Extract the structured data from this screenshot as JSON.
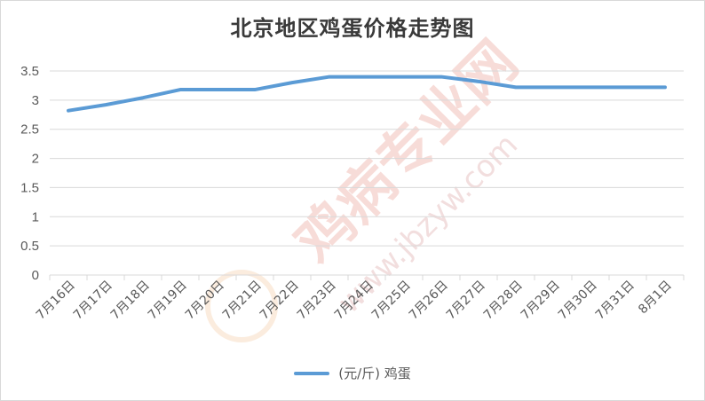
{
  "watermark": {
    "text_cn": "鸡病专业网",
    "text_url": "www.jbzyw.com",
    "text_sub": "行业 个 个",
    "color": "#e8a9a0"
  },
  "chart_data": {
    "type": "line",
    "title": "北京地区鸡蛋价格走势图",
    "categories": [
      "7月16日",
      "7月17日",
      "7月18日",
      "7月19日",
      "7月20日",
      "7月21日",
      "7月22日",
      "7月23日",
      "7月24日",
      "7月25日",
      "7月26日",
      "7月27日",
      "7月28日",
      "7月29日",
      "7月30日",
      "7月31日",
      "8月1日"
    ],
    "series": [
      {
        "name": "(元/斤) 鸡蛋",
        "color": "#5b9bd5",
        "values": [
          2.82,
          2.92,
          3.04,
          3.18,
          3.18,
          3.18,
          3.3,
          3.4,
          3.4,
          3.4,
          3.4,
          3.32,
          3.22,
          3.22,
          3.22,
          3.22,
          3.22
        ]
      }
    ],
    "yticks": [
      "0",
      "0.5",
      "1",
      "1.5",
      "2",
      "2.5",
      "3",
      "3.5"
    ],
    "ylim": [
      0,
      3.5
    ],
    "grid": true,
    "legend_position": "bottom"
  }
}
